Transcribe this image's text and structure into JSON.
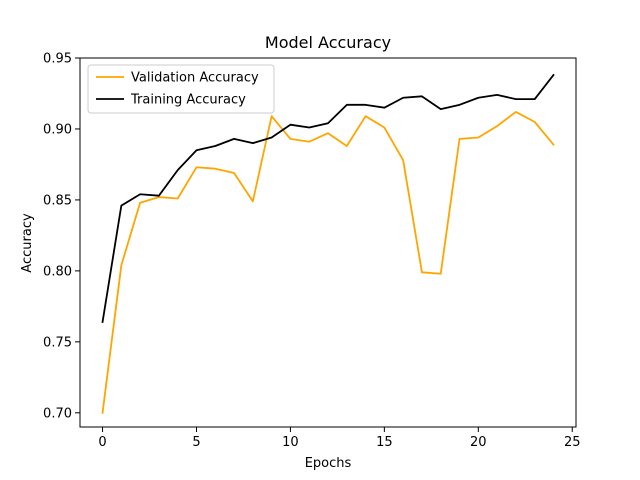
{
  "chart_data": {
    "type": "line",
    "title": "Model Accuracy",
    "xlabel": "Epochs",
    "ylabel": "Accuracy",
    "xlim": [
      -1.2,
      25.2
    ],
    "ylim": [
      0.69,
      0.95
    ],
    "x_ticks": [
      0,
      5,
      10,
      15,
      20,
      25
    ],
    "y_ticks": [
      0.7,
      0.75,
      0.8,
      0.85,
      0.9,
      0.95
    ],
    "x_tick_labels": [
      "0",
      "5",
      "10",
      "15",
      "20",
      "25"
    ],
    "y_tick_labels": [
      "0.70",
      "0.75",
      "0.80",
      "0.85",
      "0.90",
      "0.95"
    ],
    "grid": false,
    "legend_position": "upper-left",
    "x": [
      0,
      1,
      2,
      3,
      4,
      5,
      6,
      7,
      8,
      9,
      10,
      11,
      12,
      13,
      14,
      15,
      16,
      17,
      18,
      19,
      20,
      21,
      22,
      23,
      24
    ],
    "series": [
      {
        "name": "Validation Accuracy",
        "color": "#ffa500",
        "values": [
          0.7,
          0.804,
          0.848,
          0.852,
          0.851,
          0.873,
          0.872,
          0.869,
          0.849,
          0.909,
          0.893,
          0.891,
          0.897,
          0.888,
          0.909,
          0.901,
          0.878,
          0.799,
          0.798,
          0.893,
          0.894,
          0.902,
          0.912,
          0.905,
          0.889
        ]
      },
      {
        "name": "Training Accuracy",
        "color": "#000000",
        "values": [
          0.764,
          0.846,
          0.854,
          0.853,
          0.871,
          0.885,
          0.888,
          0.893,
          0.89,
          0.894,
          0.903,
          0.901,
          0.904,
          0.917,
          0.917,
          0.915,
          0.922,
          0.923,
          0.914,
          0.917,
          0.922,
          0.924,
          0.921,
          0.921,
          0.938
        ]
      }
    ]
  }
}
